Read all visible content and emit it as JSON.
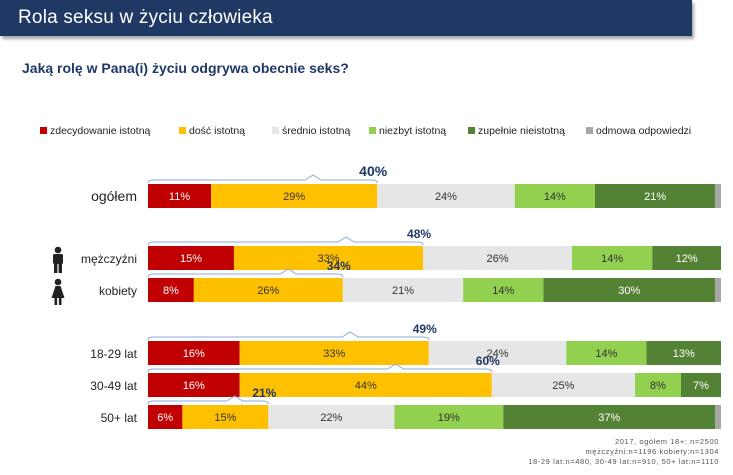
{
  "header": {
    "title": "Rola seksu w życiu człowieka"
  },
  "question": "Jaką rolę w Pana(i) życiu odgrywa obecnie seks?",
  "colors": {
    "zdecydowanie_istotna": "#c00000",
    "dosc_istotna": "#ffc000",
    "srednio_istotna": "#e6e6e6",
    "niezbyt_istotna": "#92d050",
    "zupelnie_nieistotna": "#548235",
    "odmowa": "#a6a6a6",
    "bracket": "#8faadc",
    "bracket_label": "#1f3864"
  },
  "notes": [
    "2017, ogółem 18+: n=2500",
    "mężczyźni:n=1196 kobiety:n=1304",
    "18-29 lat:n=480, 30-49 lat:n=910, 50+ lat:n=1110"
  ],
  "chart_data": {
    "type": "bar",
    "orientation": "horizontal",
    "stacked": true,
    "title": "Jaką rolę w Pana(i) życiu odgrywa obecnie seks?",
    "xlim": [
      0,
      100
    ],
    "unit": "%",
    "legend_position": "top",
    "series": [
      {
        "name": "zdecydowanie istotną",
        "key": "zdecydowanie_istotna"
      },
      {
        "name": "dość istotną",
        "key": "dosc_istotna"
      },
      {
        "name": "średnio istotną",
        "key": "srednio_istotna"
      },
      {
        "name": "niezbyt istotną",
        "key": "niezbyt_istotna"
      },
      {
        "name": "zupełnie nieistotną",
        "key": "zupelnie_nieistotna"
      },
      {
        "name": "odmowa odpowiedzi",
        "key": "odmowa"
      }
    ],
    "categories": [
      {
        "label": "ogółem",
        "icon": null,
        "values": [
          11,
          29,
          24,
          14,
          21,
          1
        ],
        "labels": [
          "11%",
          "29%",
          "24%",
          "14%",
          "21%",
          ""
        ],
        "combined": "40%"
      },
      {
        "label": "mężczyźni",
        "icon": "male-icon",
        "values": [
          15,
          33,
          26,
          14,
          12,
          0
        ],
        "labels": [
          "15%",
          "33%",
          "26%",
          "14%",
          "12%",
          ""
        ],
        "combined": "48%"
      },
      {
        "label": "kobiety",
        "icon": "female-icon",
        "values": [
          8,
          26,
          21,
          14,
          30,
          1
        ],
        "labels": [
          "8%",
          "26%",
          "21%",
          "14%",
          "30%",
          ""
        ],
        "combined": "34%"
      },
      {
        "label": "18-29 lat",
        "icon": null,
        "values": [
          16,
          33,
          24,
          14,
          13,
          0
        ],
        "labels": [
          "16%",
          "33%",
          "24%",
          "14%",
          "13%",
          ""
        ],
        "combined": "49%"
      },
      {
        "label": "30-49 lat",
        "icon": null,
        "values": [
          16,
          44,
          25,
          8,
          7,
          0
        ],
        "labels": [
          "16%",
          "44%",
          "25%",
          "8%",
          "7%",
          ""
        ],
        "combined": "60%"
      },
      {
        "label": "50+ lat",
        "icon": null,
        "values": [
          6,
          15,
          22,
          19,
          37,
          1
        ],
        "labels": [
          "6%",
          "15%",
          "22%",
          "19%",
          "37%",
          ""
        ],
        "combined": "21%"
      }
    ]
  }
}
